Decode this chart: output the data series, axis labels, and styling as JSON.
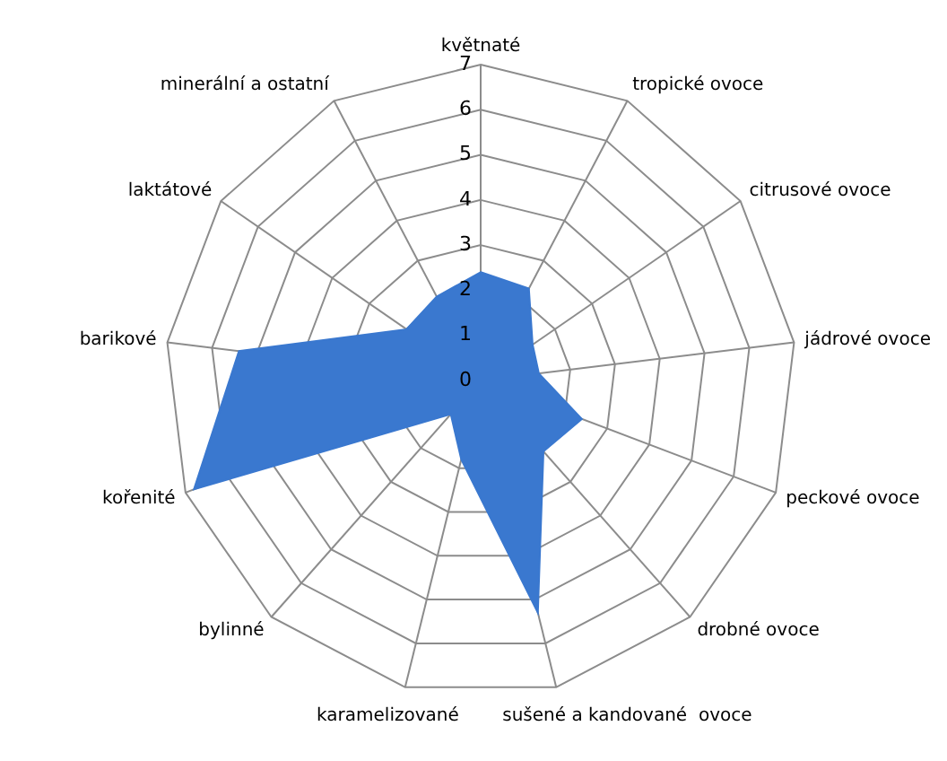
{
  "chart_data": {
    "type": "radar",
    "categories": [
      "květnaté",
      "tropické ovoce",
      "citrusové ovoce",
      "jádrové ovoce",
      "peckové ovoce",
      "drobné ovoce",
      "sušené a kandované  ovoce",
      "karamelizované",
      "bylinné",
      "kořenité",
      "barikové",
      "laktátové",
      "minerální a ostatní"
    ],
    "series": [
      {
        "color": "#3a78cf",
        "values": [
          2.4,
          2.3,
          1.4,
          1.3,
          2.4,
          2.1,
          5.3,
          1.8,
          1.0,
          6.8,
          5.4,
          2.0,
          2.1
        ]
      }
    ],
    "ylim": [
      0,
      7
    ],
    "yticks": [
      0,
      1,
      2,
      3,
      4,
      5,
      6,
      7
    ],
    "grid": true,
    "legend": false
  }
}
